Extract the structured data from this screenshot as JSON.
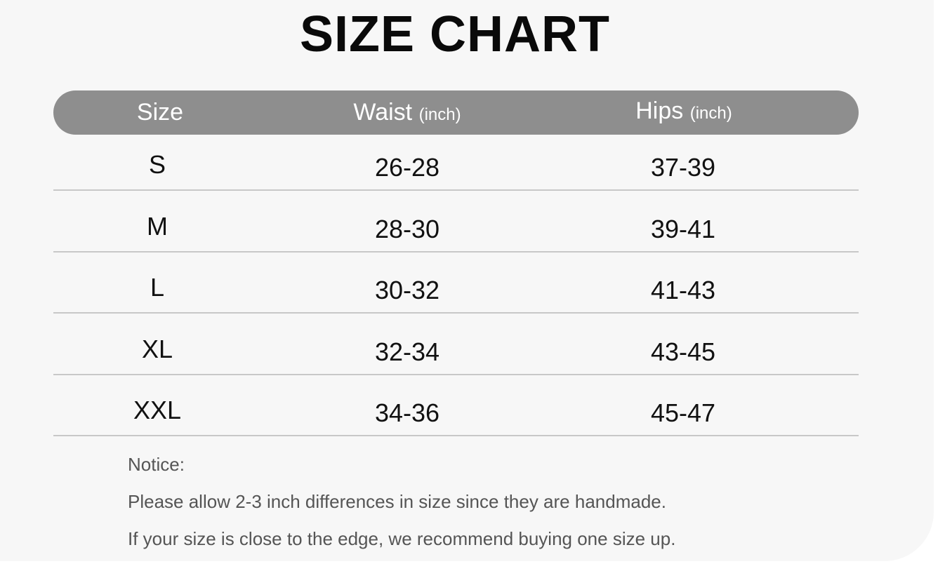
{
  "title": "SIZE CHART",
  "header": {
    "size": "Size",
    "waist": "Waist",
    "waist_unit": "(inch)",
    "hips": "Hips",
    "hips_unit": "(inch)"
  },
  "rows": [
    {
      "size": "S",
      "waist": "26-28",
      "hips": "37-39"
    },
    {
      "size": "M",
      "waist": "28-30",
      "hips": "39-41"
    },
    {
      "size": "L",
      "waist": "30-32",
      "hips": "41-43"
    },
    {
      "size": "XL",
      "waist": "32-34",
      "hips": "43-45"
    },
    {
      "size": "XXL",
      "waist": "34-36",
      "hips": "45-47"
    }
  ],
  "notice": {
    "label": "Notice:",
    "lines": [
      "Please allow 2-3 inch differences in size since they are handmade.",
      "If your size is close to the edge, we recommend buying one size up."
    ]
  },
  "colors": {
    "header_bg": "#8e8e8e",
    "panel_bg": "#f7f7f7",
    "divider": "#c8c8c8"
  }
}
